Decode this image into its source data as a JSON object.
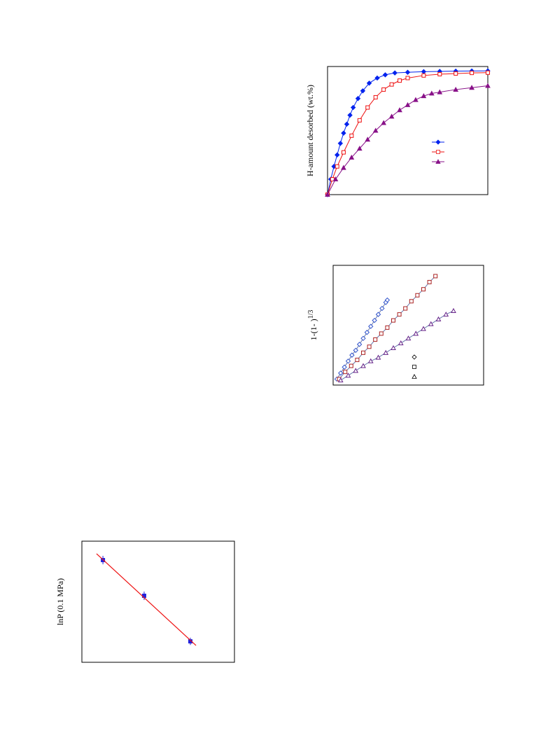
{
  "chart_data": [
    {
      "type": "line",
      "y_label": "H-amount desorbed (wt.%)",
      "xlim": [
        0,
        10
      ],
      "ylim": [
        0,
        10
      ],
      "legend": "center-right",
      "series": [
        {
          "color": "#0022ee",
          "marker": "diamond",
          "filled": true,
          "x": [
            0,
            0.2,
            0.4,
            0.6,
            0.8,
            1,
            1.2,
            1.4,
            1.6,
            1.9,
            2.2,
            2.6,
            3.1,
            3.6,
            4.2,
            5,
            6,
            7,
            8,
            9,
            10
          ],
          "values": [
            0,
            1.2,
            2.2,
            3.1,
            4,
            4.8,
            5.5,
            6.2,
            6.8,
            7.5,
            8.1,
            8.7,
            9.1,
            9.35,
            9.5,
            9.55,
            9.6,
            9.62,
            9.64,
            9.65,
            9.66
          ]
        },
        {
          "color": "#ee1111",
          "marker": "square",
          "filled": false,
          "x": [
            0,
            0.3,
            0.6,
            1,
            1.5,
            2,
            2.5,
            3,
            3.5,
            4,
            4.5,
            5,
            6,
            7,
            8,
            9,
            10
          ],
          "values": [
            0,
            1.2,
            2.2,
            3.3,
            4.6,
            5.8,
            6.8,
            7.6,
            8.2,
            8.6,
            8.9,
            9.1,
            9.3,
            9.4,
            9.45,
            9.5,
            9.52
          ]
        },
        {
          "color": "#881188",
          "marker": "triangle",
          "filled": true,
          "x": [
            0,
            0.5,
            1,
            1.5,
            2,
            2.5,
            3,
            3.5,
            4,
            4.5,
            5,
            5.5,
            6,
            6.5,
            7,
            8,
            9,
            10
          ],
          "values": [
            0,
            1.2,
            2.1,
            2.9,
            3.6,
            4.3,
            5,
            5.6,
            6.1,
            6.6,
            7,
            7.4,
            7.7,
            7.9,
            8,
            8.2,
            8.35,
            8.5
          ]
        }
      ]
    },
    {
      "type": "scatter",
      "y_label": "1-(1- )",
      "y_label_sup": "1/3",
      "xlim": [
        0,
        10
      ],
      "ylim": [
        0,
        10
      ],
      "legend": "lower-right",
      "series": [
        {
          "color": "#3355cc",
          "marker": "diamond",
          "filled": false,
          "x": [
            0.25,
            0.5,
            0.75,
            1,
            1.25,
            1.5,
            1.75,
            2,
            2.25,
            2.5,
            2.75,
            3,
            3.25,
            3.5,
            3.6
          ],
          "values": [
            0.5,
            1,
            1.5,
            2,
            2.5,
            2.9,
            3.4,
            3.9,
            4.4,
            4.9,
            5.4,
            5.9,
            6.4,
            6.9,
            7.1
          ]
        },
        {
          "color": "#aa2222",
          "marker": "square",
          "filled": false,
          "x": [
            0.4,
            0.8,
            1.2,
            1.6,
            2,
            2.4,
            2.8,
            3.2,
            3.6,
            4,
            4.4,
            4.8,
            5.2,
            5.6,
            6,
            6.4,
            6.8
          ],
          "values": [
            0.5,
            1.1,
            1.6,
            2.1,
            2.7,
            3.2,
            3.8,
            4.3,
            4.8,
            5.4,
            5.9,
            6.4,
            7,
            7.5,
            8,
            8.6,
            9.1
          ]
        },
        {
          "color": "#662288",
          "marker": "triangle",
          "filled": false,
          "x": [
            0.5,
            1,
            1.5,
            2,
            2.5,
            3,
            3.5,
            4,
            4.5,
            5,
            5.5,
            6,
            6.5,
            7,
            7.5,
            8
          ],
          "values": [
            0.4,
            0.8,
            1.2,
            1.6,
            2,
            2.3,
            2.7,
            3.1,
            3.5,
            3.9,
            4.3,
            4.7,
            5.1,
            5.5,
            5.9,
            6.2
          ]
        }
      ]
    },
    {
      "type": "errorbar",
      "y_label": "lnP (0.1 MPa)",
      "xlim": [
        0,
        10
      ],
      "ylim": [
        0,
        10
      ],
      "series": [
        {
          "color": "#2222dd",
          "marker": "square",
          "filled": true,
          "x": [
            1.38,
            4.08,
            7.11
          ],
          "values": [
            8.44,
            5.49,
            1.73
          ],
          "errors": [
            0.35,
            0.35,
            0.3
          ]
        }
      ],
      "fit": {
        "color": "#ee1111",
        "x": [
          0.96,
          7.48
        ],
        "values": [
          8.96,
          1.39
        ]
      }
    }
  ]
}
